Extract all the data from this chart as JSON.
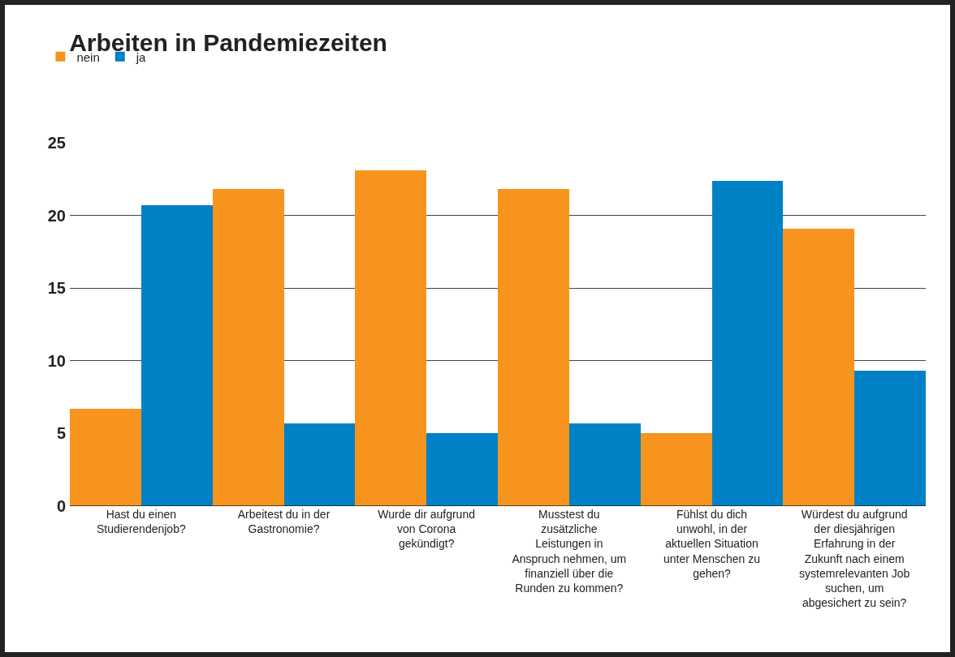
{
  "chart_data": {
    "type": "bar",
    "title": "Arbeiten in Pandemiezeiten",
    "categories": [
      "Hast du einen Studierendenjob?",
      "Arbeitest du in der Gastronomie?",
      "Wurde dir aufgrund von Corona gekündigt?",
      "Musstest du zusätzliche Leistungen in Anspruch nehmen, um finanziell über die Runden zu kommen?",
      "Fühlst du dich unwohl, in der aktuellen Situation unter Menschen zu gehen?",
      "Würdest du aufgrund der diesjährigen Erfahrung in der Zukunft nach einem systemrelevanten Job suchen, um abgesichert zu sein?"
    ],
    "series": [
      {
        "name": "nein",
        "color": "#f7941d",
        "values": [
          6.7,
          21.8,
          23.1,
          21.8,
          5.0,
          19.1
        ]
      },
      {
        "name": "ja",
        "color": "#0081c6",
        "values": [
          20.7,
          5.7,
          5.0,
          5.7,
          22.4,
          9.3
        ]
      }
    ],
    "ylim": [
      0,
      25
    ],
    "yticks": [
      0,
      5,
      10,
      15,
      20,
      25
    ],
    "grid": "y",
    "legend": "top left"
  }
}
